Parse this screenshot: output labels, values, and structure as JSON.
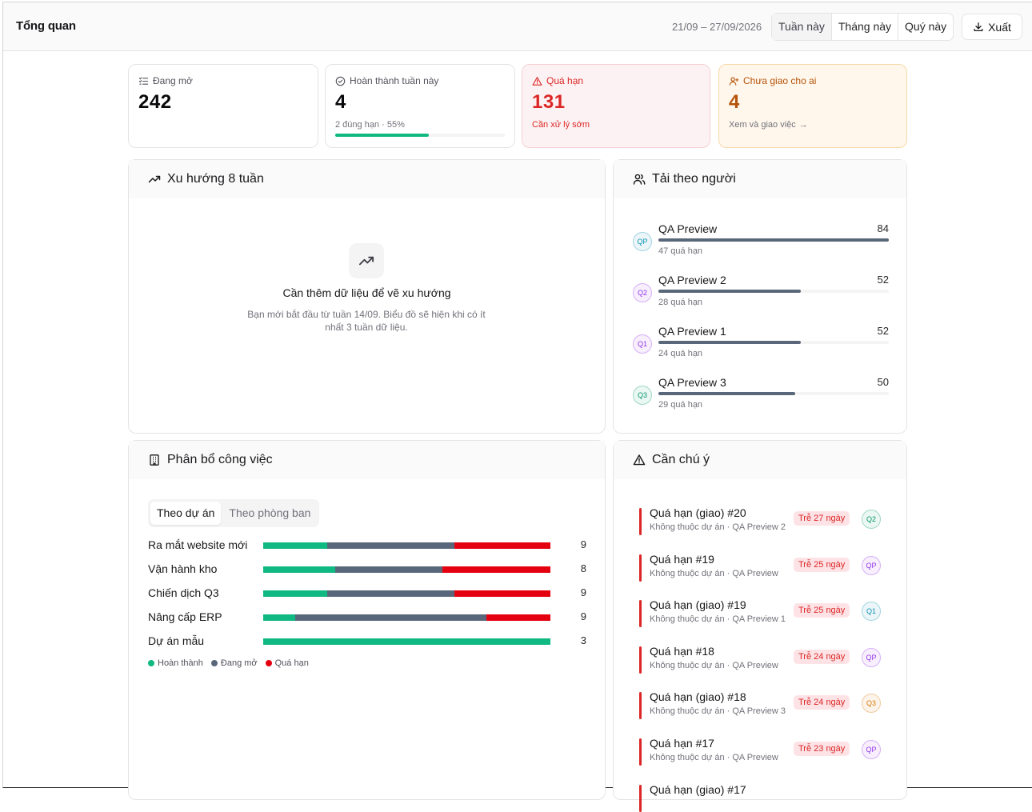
{
  "header": {
    "title": "Tổng quan",
    "date_range": "21/09 – 27/09/2026",
    "periods": [
      "Tuần này",
      "Tháng này",
      "Quý này"
    ],
    "active_period": "Tuần này",
    "export_label": "Xuất"
  },
  "stats": [
    {
      "label": "Đang mở",
      "value": "242",
      "icon": "list-checks-icon"
    },
    {
      "label": "Hoàn thành tuần này",
      "value": "4",
      "sub": "2 đúng hạn · 55%",
      "progress": 0.55,
      "icon": "check-circle-icon"
    },
    {
      "label": "Quá hạn",
      "value": "131",
      "sub": "Cần xử lý sớm",
      "icon": "alert-triangle-icon"
    },
    {
      "label": "Chưa giao cho ai",
      "value": "4",
      "sub": "Xem và giao việc",
      "icon": "user-plus-icon"
    }
  ],
  "trend": {
    "title": "Xu hướng 8 tuần",
    "empty_title": "Cần thêm dữ liệu để vẽ xu hướng",
    "empty_desc": "Bạn mới bắt đầu từ tuần 14/09. Biểu đồ sẽ hiện khi có ít nhất 3 tuần dữ liệu."
  },
  "load": {
    "title": "Tải theo người",
    "max": 84,
    "people": [
      {
        "initials": "QP",
        "name": "QA Preview",
        "count": 84,
        "overdue": "47 quá hạn",
        "color": "#0891b2"
      },
      {
        "initials": "Q2",
        "name": "QA Preview 2",
        "count": 52,
        "overdue": "28 quá hạn",
        "color": "#9333ea"
      },
      {
        "initials": "Q1",
        "name": "QA Preview 1",
        "count": 52,
        "overdue": "24 quá hạn",
        "color": "#9333ea"
      },
      {
        "initials": "Q3",
        "name": "QA Preview 3",
        "count": 50,
        "overdue": "29 quá hạn",
        "color": "#059669"
      }
    ]
  },
  "distribution": {
    "title": "Phân bổ công việc",
    "tabs": [
      "Theo dự án",
      "Theo phòng ban"
    ],
    "active_tab": "Theo dự án",
    "rows": [
      {
        "name": "Ra mắt website mới",
        "done": 2,
        "open": 4,
        "over": 3,
        "total": "9"
      },
      {
        "name": "Vận hành kho",
        "done": 2,
        "open": 3,
        "over": 3,
        "total": "8"
      },
      {
        "name": "Chiến dịch Q3",
        "done": 2,
        "open": 4,
        "over": 3,
        "total": "9"
      },
      {
        "name": "Nâng cấp ERP",
        "done": 1,
        "open": 6,
        "over": 2,
        "total": "9"
      },
      {
        "name": "Dự án mẫu",
        "done": 3,
        "open": 0,
        "over": 0,
        "total": "3"
      }
    ],
    "legend": [
      {
        "label": "Hoàn thành",
        "color": "#10b981"
      },
      {
        "label": "Đang mở",
        "color": "#5a677a"
      },
      {
        "label": "Quá hạn",
        "color": "#e5000f"
      }
    ]
  },
  "attention": {
    "title": "Cần chú ý",
    "items": [
      {
        "title": "Quá hạn (giao) #20",
        "sub": "Không thuộc dự án · QA Preview 2",
        "badge": "Trễ 27 ngày",
        "initials": "Q2",
        "color": "#059669"
      },
      {
        "title": "Quá hạn #19",
        "sub": "Không thuộc dự án · QA Preview",
        "badge": "Trễ 25 ngày",
        "initials": "QP",
        "color": "#9333ea"
      },
      {
        "title": "Quá hạn (giao) #19",
        "sub": "Không thuộc dự án · QA Preview 1",
        "badge": "Trễ 25 ngày",
        "initials": "Q1",
        "color": "#0891b2"
      },
      {
        "title": "Quá hạn #18",
        "sub": "Không thuộc dự án · QA Preview",
        "badge": "Trễ 24 ngày",
        "initials": "QP",
        "color": "#9333ea"
      },
      {
        "title": "Quá hạn (giao) #18",
        "sub": "Không thuộc dự án · QA Preview 3",
        "badge": "Trễ 24 ngày",
        "initials": "Q3",
        "color": "#d97706"
      },
      {
        "title": "Quá hạn #17",
        "sub": "Không thuộc dự án · QA Preview",
        "badge": "Trễ 23 ngày",
        "initials": "QP",
        "color": "#9333ea"
      },
      {
        "title": "Quá hạn (giao) #17",
        "sub": "",
        "badge": "",
        "initials": "",
        "color": "#0891b2"
      }
    ]
  }
}
